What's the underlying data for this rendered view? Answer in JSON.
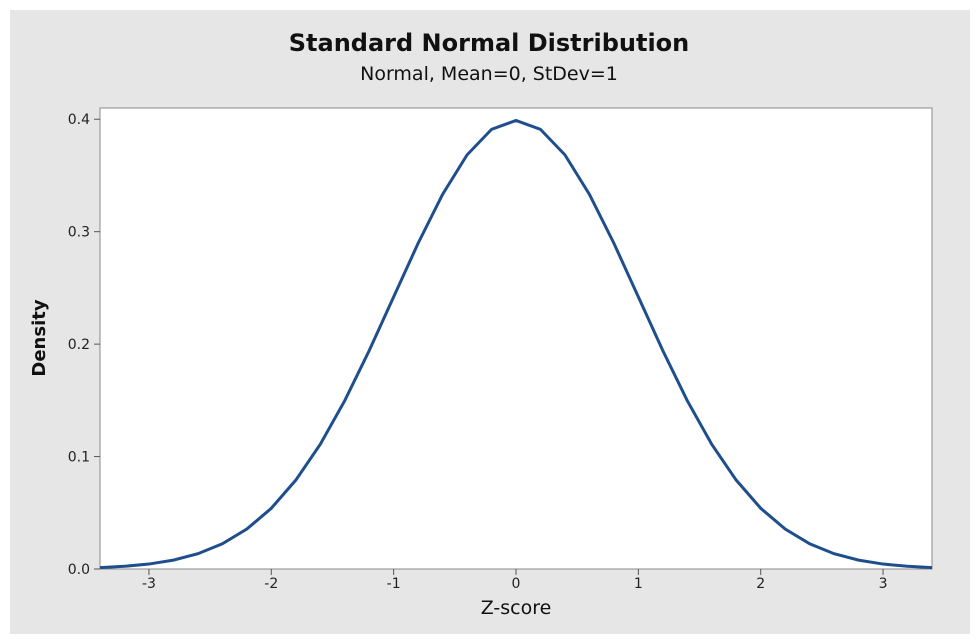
{
  "chart_data": {
    "type": "line",
    "title": "Standard Normal Distribution",
    "subtitle": "Normal, Mean=0, StDev=1",
    "xlabel": "Z-score",
    "ylabel": "Density",
    "xlim": [
      -3.4,
      3.4
    ],
    "ylim": [
      0,
      0.41
    ],
    "x_ticks": [
      -3,
      -2,
      -1,
      0,
      1,
      2,
      3
    ],
    "x_tick_labels": [
      "-3",
      "-2",
      "-1",
      "0",
      "1",
      "2",
      "3"
    ],
    "y_ticks": [
      0.0,
      0.1,
      0.2,
      0.3,
      0.4
    ],
    "y_tick_labels": [
      "0.0",
      "0.1",
      "0.2",
      "0.3",
      "0.4"
    ],
    "grid": false,
    "series": [
      {
        "line_color": "#1f4e8c",
        "x": [
          -3.4,
          -3.2,
          -3.0,
          -2.8,
          -2.6,
          -2.4,
          -2.2,
          -2.0,
          -1.8,
          -1.6,
          -1.4,
          -1.2,
          -1.0,
          -0.8,
          -0.6,
          -0.4,
          -0.2,
          0.0,
          0.2,
          0.4,
          0.6,
          0.8,
          1.0,
          1.2,
          1.4,
          1.6,
          1.8,
          2.0,
          2.2,
          2.4,
          2.6,
          2.8,
          3.0,
          3.2,
          3.4
        ],
        "values": [
          0.0012,
          0.0024,
          0.0044,
          0.0079,
          0.0136,
          0.0224,
          0.0355,
          0.054,
          0.079,
          0.1109,
          0.1497,
          0.1942,
          0.242,
          0.2897,
          0.3332,
          0.3683,
          0.391,
          0.3989,
          0.391,
          0.3683,
          0.3332,
          0.2897,
          0.242,
          0.1942,
          0.1497,
          0.1109,
          0.079,
          0.054,
          0.0355,
          0.0224,
          0.0136,
          0.0079,
          0.0044,
          0.0024,
          0.0012
        ]
      }
    ]
  }
}
